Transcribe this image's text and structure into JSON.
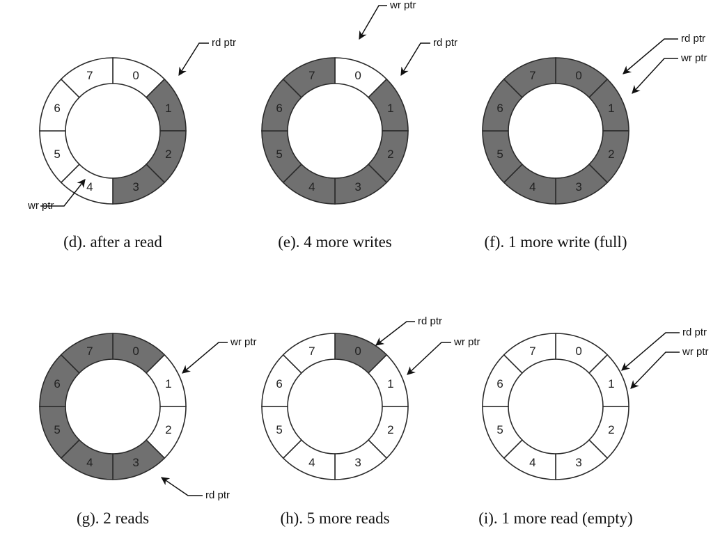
{
  "colors": {
    "filled": "#707070",
    "empty": "#ffffff",
    "stroke": "#2a2a2a",
    "text": "#111111"
  },
  "panels": [
    {
      "id": "d",
      "caption": "(d). after a read",
      "filled": [
        1,
        2,
        3
      ],
      "pointers": [
        {
          "label": "rd ptr",
          "target_segment": 1
        },
        {
          "label": "wr ptr",
          "target_segment": 4
        }
      ]
    },
    {
      "id": "e",
      "caption": "(e). 4 more writes",
      "filled": [
        1,
        2,
        3,
        4,
        5,
        6,
        7
      ],
      "pointers": [
        {
          "label": "wr ptr",
          "target_segment": 0
        },
        {
          "label": "rd ptr",
          "target_segment": 1
        }
      ]
    },
    {
      "id": "f",
      "caption": "(f). 1 more write (full)",
      "filled": [
        0,
        1,
        2,
        3,
        4,
        5,
        6,
        7
      ],
      "pointers": [
        {
          "label": "rd ptr",
          "target_segment": 1
        },
        {
          "label": "wr ptr",
          "target_segment": 1
        }
      ]
    },
    {
      "id": "g",
      "caption": "(g). 2 reads",
      "filled": [
        0,
        3,
        4,
        5,
        6,
        7
      ],
      "pointers": [
        {
          "label": "wr ptr",
          "target_segment": 1
        },
        {
          "label": "rd ptr",
          "target_segment": 3
        }
      ]
    },
    {
      "id": "h",
      "caption": "(h). 5 more reads",
      "filled": [
        0
      ],
      "pointers": [
        {
          "label": "rd ptr",
          "target_segment": 0
        },
        {
          "label": "wr ptr",
          "target_segment": 1
        }
      ]
    },
    {
      "id": "i",
      "caption": "(i). 1 more read (empty)",
      "filled": [],
      "pointers": [
        {
          "label": "rd ptr",
          "target_segment": 1
        },
        {
          "label": "wr ptr",
          "target_segment": 1
        }
      ]
    }
  ],
  "segment_labels": [
    "0",
    "1",
    "2",
    "3",
    "4",
    "5",
    "6",
    "7"
  ]
}
